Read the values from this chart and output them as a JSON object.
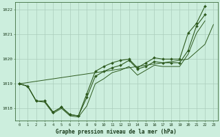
{
  "title": "Graphe pression niveau de la mer (hPa)",
  "background_color": "#cceedd",
  "grid_color": "#aaccbb",
  "line_color": "#2d5a1e",
  "x_min": 0,
  "x_max": 23,
  "y_min": 1017.5,
  "y_max": 1022.3,
  "yticks": [
    1018,
    1019,
    1020,
    1021,
    1022
  ],
  "xticks": [
    0,
    1,
    2,
    3,
    4,
    5,
    6,
    7,
    8,
    9,
    10,
    11,
    12,
    13,
    14,
    15,
    16,
    17,
    18,
    19,
    20,
    21,
    22,
    23
  ],
  "series_upper": [
    1019.0,
    1018.9,
    1018.3,
    1018.3,
    1017.85,
    1018.05,
    1017.75,
    1017.7,
    1018.6,
    1019.5,
    1019.7,
    1019.85,
    1019.95,
    1020.0,
    1019.65,
    1019.85,
    1020.05,
    1020.0,
    1020.0,
    1020.0,
    1021.05,
    1021.45,
    1022.15
  ],
  "series_mid1": [
    1019.0,
    1018.9,
    1018.3,
    1018.3,
    1017.85,
    1018.05,
    1017.75,
    1017.7,
    1018.45,
    1019.3,
    1019.5,
    1019.65,
    1019.75,
    1019.95,
    1019.6,
    1019.7,
    1019.9,
    1019.85,
    1019.85,
    1019.85,
    1020.35,
    1021.35,
    1021.8
  ],
  "series_mid2": [
    1019.0,
    1018.9,
    1018.3,
    1018.25,
    1017.8,
    1018.0,
    1017.7,
    1017.65,
    1018.1,
    1019.0,
    1019.2,
    1019.45,
    1019.55,
    1019.7,
    1019.35,
    1019.55,
    1019.75,
    1019.7,
    1019.7,
    1019.7,
    1020.2,
    1021.05,
    1021.55
  ],
  "series_trend": [
    1019.0,
    1019.05,
    1019.1,
    1019.15,
    1019.2,
    1019.25,
    1019.3,
    1019.35,
    1019.4,
    1019.45,
    1019.5,
    1019.55,
    1019.6,
    1019.65,
    1019.7,
    1019.75,
    1019.8,
    1019.85,
    1019.9,
    1019.95,
    1020.0,
    1020.3,
    1020.6,
    1021.4
  ]
}
